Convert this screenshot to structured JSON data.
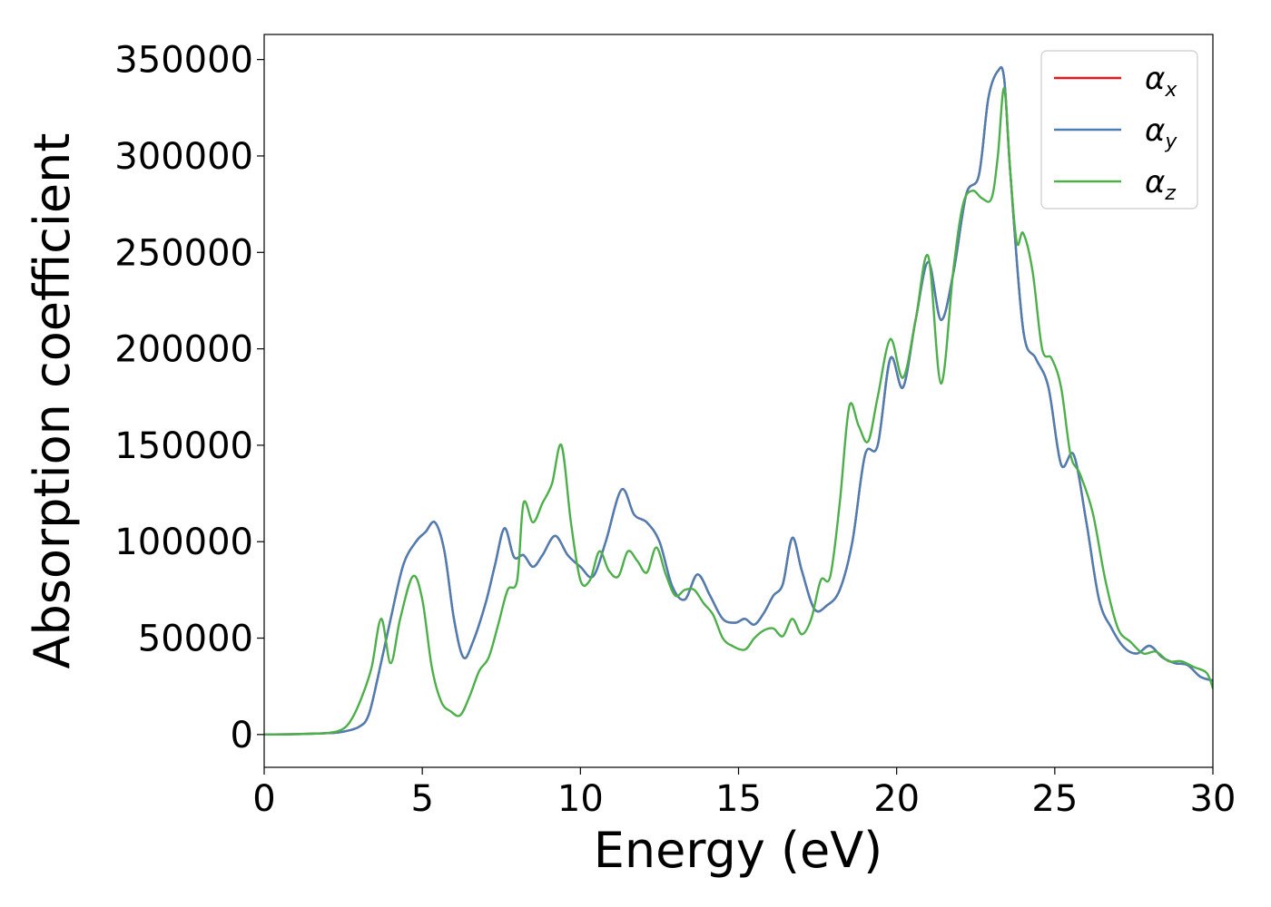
{
  "chart_data": {
    "type": "line",
    "xlabel": "Energy (eV)",
    "ylabel": "Absorption coefficient",
    "xlim": [
      0,
      30
    ],
    "ylim": [
      -17000,
      363000
    ],
    "xticks": [
      0,
      5,
      10,
      15,
      20,
      25,
      30
    ],
    "yticks": [
      0,
      50000,
      100000,
      150000,
      200000,
      250000,
      300000,
      350000
    ],
    "grid": false,
    "legend_position": "top-right",
    "series": [
      {
        "name": "αx",
        "symbol": "α",
        "subscript": "x",
        "color": "#e41a1c",
        "x": [
          0,
          1,
          2,
          2.5,
          3,
          3.3,
          3.6,
          4,
          4.4,
          4.8,
          5.1,
          5.4,
          5.7,
          6,
          6.3,
          6.6,
          7,
          7.3,
          7.6,
          7.9,
          8.2,
          8.5,
          8.8,
          9.2,
          9.6,
          10,
          10.4,
          10.8,
          11.3,
          11.7,
          12.1,
          12.5,
          12.9,
          13.3,
          13.7,
          14.1,
          14.5,
          14.9,
          15.2,
          15.5,
          15.8,
          16.1,
          16.4,
          16.7,
          17,
          17.4,
          17.8,
          18.2,
          18.6,
          19,
          19.4,
          19.8,
          20.2,
          20.6,
          21,
          21.4,
          21.8,
          22.2,
          22.6,
          22.9,
          23.2,
          23.4,
          23.6,
          24,
          24.4,
          24.8,
          25.2,
          25.6,
          26,
          26.4,
          26.8,
          27.2,
          27.6,
          28,
          28.4,
          28.8,
          29.2,
          29.6,
          30
        ],
        "y": [
          0,
          200,
          700,
          1500,
          4000,
          10000,
          30000,
          60000,
          88000,
          100000,
          105000,
          110000,
          95000,
          60000,
          40000,
          48000,
          68000,
          88000,
          107000,
          92000,
          93000,
          87000,
          93000,
          103000,
          93000,
          87000,
          82000,
          100000,
          127000,
          114000,
          110000,
          100000,
          77000,
          70000,
          83000,
          72000,
          60000,
          58000,
          60000,
          57000,
          63000,
          72000,
          78000,
          102000,
          85000,
          65000,
          67000,
          75000,
          100000,
          145000,
          150000,
          195000,
          180000,
          215000,
          245000,
          215000,
          240000,
          280000,
          290000,
          330000,
          344000,
          340000,
          290000,
          210000,
          195000,
          180000,
          140000,
          145000,
          110000,
          70000,
          55000,
          45000,
          42000,
          46000,
          40000,
          37000,
          36000,
          30000,
          28000
        ]
      },
      {
        "name": "αy",
        "symbol": "α",
        "subscript": "y",
        "color": "#4a7fb4",
        "x": [
          0,
          1,
          2,
          2.5,
          3,
          3.3,
          3.6,
          4,
          4.4,
          4.8,
          5.1,
          5.4,
          5.7,
          6,
          6.3,
          6.6,
          7,
          7.3,
          7.6,
          7.9,
          8.2,
          8.5,
          8.8,
          9.2,
          9.6,
          10,
          10.4,
          10.8,
          11.3,
          11.7,
          12.1,
          12.5,
          12.9,
          13.3,
          13.7,
          14.1,
          14.5,
          14.9,
          15.2,
          15.5,
          15.8,
          16.1,
          16.4,
          16.7,
          17,
          17.4,
          17.8,
          18.2,
          18.6,
          19,
          19.4,
          19.8,
          20.2,
          20.6,
          21,
          21.4,
          21.8,
          22.2,
          22.6,
          22.9,
          23.2,
          23.4,
          23.6,
          24,
          24.4,
          24.8,
          25.2,
          25.6,
          26,
          26.4,
          26.8,
          27.2,
          27.6,
          28,
          28.4,
          28.8,
          29.2,
          29.6,
          30
        ],
        "y": [
          0,
          200,
          700,
          1500,
          4000,
          10000,
          30000,
          60000,
          88000,
          100000,
          105000,
          110000,
          95000,
          60000,
          40000,
          48000,
          68000,
          88000,
          107000,
          92000,
          93000,
          87000,
          93000,
          103000,
          93000,
          87000,
          82000,
          100000,
          127000,
          114000,
          110000,
          100000,
          77000,
          70000,
          83000,
          72000,
          60000,
          58000,
          60000,
          57000,
          63000,
          72000,
          78000,
          102000,
          85000,
          65000,
          67000,
          75000,
          100000,
          145000,
          150000,
          195000,
          180000,
          215000,
          245000,
          215000,
          240000,
          280000,
          290000,
          330000,
          344000,
          340000,
          290000,
          210000,
          195000,
          180000,
          140000,
          145000,
          110000,
          70000,
          55000,
          45000,
          42000,
          46000,
          40000,
          37000,
          36000,
          30000,
          28000
        ]
      },
      {
        "name": "αz",
        "symbol": "α",
        "subscript": "z",
        "color": "#4daf4a",
        "x": [
          0,
          1,
          2,
          2.5,
          2.8,
          3.1,
          3.4,
          3.7,
          4,
          4.3,
          4.7,
          5,
          5.3,
          5.6,
          5.9,
          6.2,
          6.5,
          6.8,
          7.1,
          7.4,
          7.7,
          8,
          8.2,
          8.5,
          8.8,
          9.1,
          9.4,
          9.7,
          10,
          10.3,
          10.6,
          10.9,
          11.2,
          11.5,
          11.8,
          12.1,
          12.4,
          12.7,
          13,
          13.3,
          13.6,
          13.9,
          14.2,
          14.5,
          14.8,
          15.2,
          15.5,
          15.8,
          16.1,
          16.4,
          16.7,
          17,
          17.3,
          17.6,
          17.9,
          18.2,
          18.5,
          18.8,
          19.1,
          19.4,
          19.8,
          20.2,
          20.6,
          21,
          21.4,
          21.8,
          22.1,
          22.4,
          22.7,
          23,
          23.2,
          23.4,
          23.6,
          23.8,
          24,
          24.3,
          24.6,
          24.9,
          25.2,
          25.5,
          25.8,
          26.2,
          26.6,
          27,
          27.4,
          27.8,
          28.2,
          28.6,
          29,
          29.4,
          29.8,
          30
        ],
        "y": [
          0,
          200,
          800,
          3000,
          9000,
          20000,
          35000,
          60000,
          37000,
          60000,
          82000,
          70000,
          35000,
          17000,
          12000,
          10000,
          20000,
          33000,
          40000,
          57000,
          75000,
          80000,
          120000,
          110000,
          120000,
          130000,
          150000,
          110000,
          80000,
          80000,
          95000,
          85000,
          82000,
          95000,
          90000,
          84000,
          97000,
          83000,
          72000,
          75000,
          75000,
          68000,
          62000,
          50000,
          46000,
          44000,
          50000,
          54000,
          55000,
          51000,
          60000,
          52000,
          60000,
          80000,
          82000,
          120000,
          170000,
          160000,
          152000,
          175000,
          205000,
          185000,
          215000,
          248000,
          182000,
          242000,
          275000,
          282000,
          278000,
          278000,
          300000,
          335000,
          290000,
          255000,
          260000,
          240000,
          200000,
          195000,
          180000,
          145000,
          135000,
          115000,
          80000,
          55000,
          48000,
          42000,
          43000,
          38000,
          38000,
          35000,
          32000,
          24000
        ]
      }
    ]
  }
}
